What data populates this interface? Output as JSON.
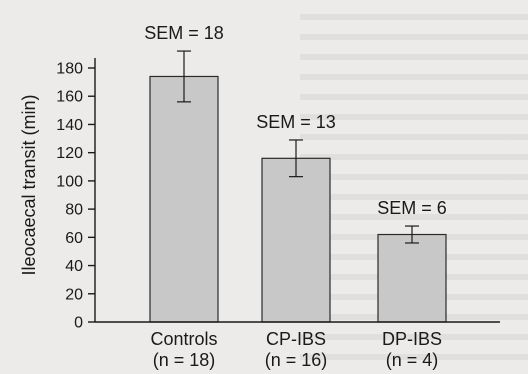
{
  "chart_data": {
    "type": "bar",
    "ylabel": "Ileocaecal transit (min)",
    "xlabel": "",
    "title": "",
    "ylim": [
      0,
      180
    ],
    "yticks": [
      0,
      20,
      40,
      60,
      80,
      100,
      120,
      140,
      160,
      180
    ],
    "grid": false,
    "categories": [
      {
        "label": "Controls",
        "n_label": "(n = 18)"
      },
      {
        "label": "CP-IBS",
        "n_label": "(n = 16)"
      },
      {
        "label": "DP-IBS",
        "n_label": "(n = 4)"
      }
    ],
    "values": [
      174,
      116,
      62
    ],
    "errors": [
      18,
      13,
      6
    ],
    "annotations": [
      "SEM = 18",
      "SEM = 13",
      "SEM = 6"
    ],
    "bar_color": "#c8c8c8"
  }
}
